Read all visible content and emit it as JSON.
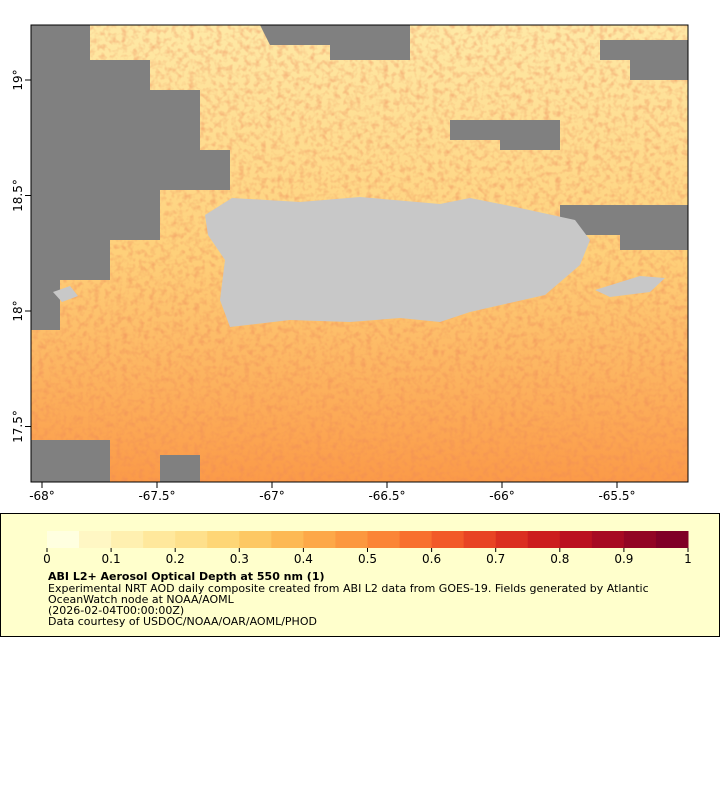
{
  "map": {
    "xticks": [
      {
        "value": -68,
        "label": "-68°"
      },
      {
        "value": -67.5,
        "label": "-67.5°"
      },
      {
        "value": -67,
        "label": "-67°"
      },
      {
        "value": -66.5,
        "label": "-66.5°"
      },
      {
        "value": -66,
        "label": "-66°"
      },
      {
        "value": -65.5,
        "label": "-65.5°"
      }
    ],
    "yticks": [
      {
        "value": 19,
        "label": "19°"
      },
      {
        "value": 18.5,
        "label": "18.5°"
      },
      {
        "value": 18,
        "label": "18°"
      },
      {
        "value": 17.5,
        "label": "17.5°"
      }
    ]
  },
  "colorbar": {
    "ticks": [
      0,
      0.1,
      0.2,
      0.3,
      0.4,
      0.5,
      0.6,
      0.7,
      0.8,
      0.9,
      1
    ],
    "colors": [
      "#ffffe0",
      "#fff7c4",
      "#fff0b0",
      "#ffe89c",
      "#fee08b",
      "#fed676",
      "#fdc863",
      "#fdb954",
      "#fda848",
      "#fc983f",
      "#fb8536",
      "#f8702e",
      "#f25a28",
      "#e84424",
      "#db2f20",
      "#cc1e1e",
      "#bb111f",
      "#a70a22",
      "#920524",
      "#800026"
    ]
  },
  "caption": {
    "title": "ABI L2+ Aerosol Optical Depth at 550 nm (1)",
    "lines": [
      "Experimental NRT AOD daily composite created from ABI L2 data from GOES-19. Fields generated by Atlantic",
      "OceanWatch node at NOAA/AOML",
      "(2026-02-04T00:00:00Z)",
      "Data courtesy of USDOC/NOAA/OAR/AOML/PHOD"
    ]
  }
}
